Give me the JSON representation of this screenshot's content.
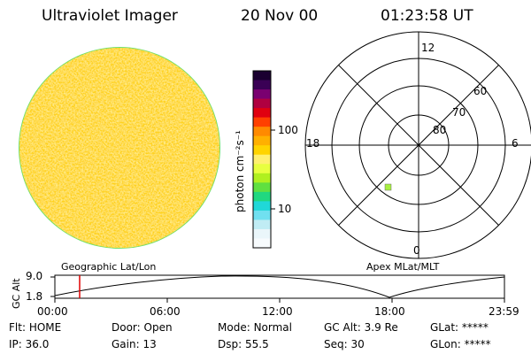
{
  "header": {
    "title": "Ultraviolet Imager",
    "date": "20 Nov 00",
    "time": "01:23:58 UT"
  },
  "colorbar": {
    "unit": "photon cm⁻²s⁻¹",
    "ticks": [
      "100",
      "10"
    ],
    "colors": [
      "#1a0030",
      "#3a0055",
      "#7a0070",
      "#b00040",
      "#e00010",
      "#ff4000",
      "#ff8a00",
      "#ffb000",
      "#ffd400",
      "#fff070",
      "#e8ff40",
      "#b0f020",
      "#60e040",
      "#20d880",
      "#20d8d8",
      "#70e0f0",
      "#c0ecf4",
      "#eaf6fa",
      "#f7fbfd"
    ]
  },
  "polar_plot": {
    "mlt_labels": [
      "12",
      "18",
      "6",
      "0"
    ],
    "lat_labels": [
      "60",
      "70",
      "80"
    ],
    "marker_color": "#a8f040"
  },
  "timeline": {
    "left_label": "Geographic Lat/Lon",
    "right_label": "Apex MLat/MLT",
    "y_axis_label": "GC Alt",
    "y_ticks": [
      "9.0",
      "1.8"
    ],
    "x_ticks": [
      "00:00",
      "06:00",
      "12:00",
      "18:00",
      "23:59"
    ],
    "current_time_color": "#e00000"
  },
  "status": {
    "row1": [
      {
        "label": "Flt:",
        "value": "HOME"
      },
      {
        "label": "Door:",
        "value": "Open"
      },
      {
        "label": "Mode:",
        "value": "Normal"
      },
      {
        "label": "GC Alt:",
        "value": "3.9 Re"
      },
      {
        "label": "GLat:",
        "value": "*****"
      }
    ],
    "row2": [
      {
        "label": "IP:",
        "value": "36.0"
      },
      {
        "label": "Gain:",
        "value": "13"
      },
      {
        "label": "Dsp:",
        "value": "55.5"
      },
      {
        "label": "Seq:",
        "value": "30"
      },
      {
        "label": "GLon:",
        "value": "*****"
      }
    ]
  }
}
